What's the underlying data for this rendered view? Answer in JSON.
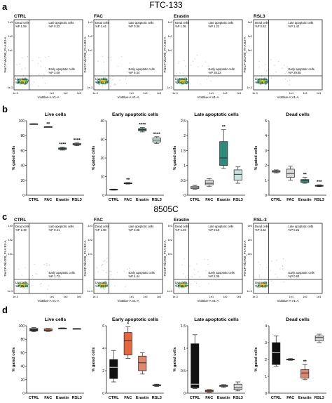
{
  "figure": {
    "panel_letters": [
      "a",
      "b",
      "c",
      "d"
    ],
    "title_a": "FTC-133",
    "title_c": "8505C",
    "facs_ylabel": "PerCP-Vio700_PI-A B3-A",
    "facs_xlabel": "VioBlue-A V1-A",
    "facs_ticks": [
      "1e-3",
      "1e1",
      "1e2",
      "1e3"
    ],
    "box_ylabel": "% gated cells",
    "quadrant_labels": {
      "dead": "Dead cells",
      "late": "Late apoptotic cells",
      "early": "Early apoptotic cells",
      "live": "Live cells"
    }
  },
  "facs_a": [
    {
      "name": "CTRL",
      "dead": "%P 1.59",
      "late": "%P 0.22",
      "early": "%P 3.09",
      "live": "%P 95.17"
    },
    {
      "name": "FAC",
      "dead": "%P 1.44",
      "late": "%P 0.36",
      "early": "%P 6.44",
      "live": "%P 91.76"
    },
    {
      "name": "Erastin",
      "dead": "%P 1.05",
      "late": "%P 1.22",
      "early": "%P 35.23",
      "live": "%P 62.50"
    },
    {
      "name": "RSL3",
      "dead": "%P 0.63",
      "late": "%P 1.42",
      "early": "%P 29.65",
      "live": "%P 68.30"
    }
  ],
  "facs_c": [
    {
      "name": "CTRL",
      "dead": "%P 2.49",
      "late": "%P 0.21",
      "early": "%P 1.72",
      "live": "%P 95.58"
    },
    {
      "name": "FAC",
      "dead": "%P 1.98",
      "late": "%P 0.08",
      "early": "%P 4.44",
      "live": "%P 93.50"
    },
    {
      "name": "Erastin",
      "dead": "%P 1.49",
      "late": "%P 0.19",
      "early": "%P 2.05",
      "live": "%P 96.27"
    },
    {
      "name": "RSL-3",
      "dead": "%P 3.32",
      "late": "%P 0.21",
      "early": "%P 0.63",
      "live": "%P 95.84"
    }
  ],
  "chart_data": [
    {
      "type": "box",
      "panel": "b",
      "title": "Live cells",
      "ylabel": "% gated cells",
      "categories": [
        "CTRL",
        "FAC",
        "Erastin",
        "RSL3"
      ],
      "ylim": [
        0,
        100
      ],
      "yticks": [
        0,
        20,
        40,
        60,
        80,
        100
      ],
      "boxes": [
        {
          "min": 95.3,
          "q1": 95.5,
          "median": 95.8,
          "q3": 96.0,
          "max": 96.1
        },
        {
          "min": 91.3,
          "q1": 91.5,
          "median": 91.8,
          "q3": 92.0,
          "max": 92.2
        },
        {
          "min": 60.5,
          "q1": 61.5,
          "median": 62.5,
          "q3": 63.5,
          "max": 64.5
        },
        {
          "min": 66.5,
          "q1": 67.5,
          "median": 68.5,
          "q3": 69.5,
          "max": 70.5
        }
      ],
      "colors": [
        "#f2f2f2",
        "#d8d8d8",
        "#2e8b7a",
        "#c7e3dd"
      ],
      "annotations": [
        "",
        "**",
        "****",
        "****"
      ]
    },
    {
      "type": "box",
      "panel": "b",
      "title": "Early apoptotic cells",
      "ylabel": "% gated cells",
      "categories": [
        "CTRL",
        "FAC",
        "Erastin",
        "RSL3"
      ],
      "ylim": [
        0,
        40
      ],
      "yticks": [
        0,
        10,
        20,
        30,
        40
      ],
      "boxes": [
        {
          "min": 2.7,
          "q1": 2.9,
          "median": 3.0,
          "q3": 3.2,
          "max": 3.3
        },
        {
          "min": 6.0,
          "q1": 6.2,
          "median": 6.4,
          "q3": 6.6,
          "max": 6.8
        },
        {
          "min": 34.0,
          "q1": 34.6,
          "median": 35.2,
          "q3": 35.8,
          "max": 36.4
        },
        {
          "min": 27.8,
          "q1": 28.6,
          "median": 29.6,
          "q3": 30.8,
          "max": 31.4
        }
      ],
      "colors": [
        "#f2f2f2",
        "#d8d8d8",
        "#2e8b7a",
        "#c7e3dd"
      ],
      "annotations": [
        "",
        "**",
        "****",
        "****"
      ]
    },
    {
      "type": "box",
      "panel": "b",
      "title": "Late apoptotic cells",
      "ylabel": "% gated cells",
      "categories": [
        "CTRL",
        "FAC",
        "Erastin",
        "RSL3"
      ],
      "ylim": [
        0,
        2.5
      ],
      "yticks": [
        0,
        0.5,
        1,
        1.5,
        2,
        2.5
      ],
      "boxes": [
        {
          "min": 0.2,
          "q1": 0.22,
          "median": 0.25,
          "q3": 0.3,
          "max": 0.33
        },
        {
          "min": 0.3,
          "q1": 0.35,
          "median": 0.4,
          "q3": 0.5,
          "max": 0.55
        },
        {
          "min": 0.9,
          "q1": 1.0,
          "median": 1.25,
          "q3": 1.8,
          "max": 2.2
        },
        {
          "min": 0.4,
          "q1": 0.5,
          "median": 0.7,
          "q3": 0.85,
          "max": 0.95
        }
      ],
      "colors": [
        "#f2f2f2",
        "#d8d8d8",
        "#2e8b7a",
        "#c7e3dd"
      ],
      "annotations": [
        "",
        "",
        "**",
        ""
      ]
    },
    {
      "type": "box",
      "panel": "b",
      "title": "Dead cells",
      "ylabel": "% gated cells",
      "categories": [
        "CTRL",
        "FAC",
        "Erastin",
        "RSL3"
      ],
      "ylim": [
        0,
        5
      ],
      "yticks": [
        0,
        1,
        2,
        3,
        4,
        5
      ],
      "boxes": [
        {
          "min": 1.5,
          "q1": 1.55,
          "median": 1.6,
          "q3": 1.65,
          "max": 1.7
        },
        {
          "min": 1.0,
          "q1": 1.2,
          "median": 1.45,
          "q3": 1.75,
          "max": 1.95
        },
        {
          "min": 0.8,
          "q1": 0.85,
          "median": 1.0,
          "q3": 1.05,
          "max": 1.2
        },
        {
          "min": 0.58,
          "q1": 0.6,
          "median": 0.63,
          "q3": 0.66,
          "max": 0.7
        }
      ],
      "colors": [
        "#f2f2f2",
        "#d8d8d8",
        "#2e8b7a",
        "#c7e3dd"
      ],
      "annotations": [
        "",
        "",
        "**",
        "***"
      ]
    },
    {
      "type": "box",
      "panel": "d",
      "title": "Live cells",
      "ylabel": "% gated cells",
      "categories": [
        "CTRL",
        "FAC",
        "Erastin",
        "RSL3"
      ],
      "ylim": [
        0,
        100
      ],
      "yticks": [
        0,
        20,
        40,
        60,
        80,
        100
      ],
      "boxes": [
        {
          "min": 91.0,
          "q1": 92.5,
          "median": 95.5,
          "q3": 96.5,
          "max": 97.5
        },
        {
          "min": 91.5,
          "q1": 92.5,
          "median": 93.5,
          "q3": 95.5,
          "max": 96.0
        },
        {
          "min": 95.8,
          "q1": 96.0,
          "median": 96.3,
          "q3": 96.6,
          "max": 96.8
        },
        {
          "min": 95.5,
          "q1": 95.7,
          "median": 95.8,
          "q3": 96.0,
          "max": 96.1
        }
      ],
      "colors": [
        "#111111",
        "#e8663d",
        "#e0866e",
        "#d8d8d8"
      ],
      "annotations": [
        "",
        "",
        "",
        ""
      ]
    },
    {
      "type": "box",
      "panel": "d",
      "title": "Early apoptotic cells",
      "ylabel": "% gated cells",
      "categories": [
        "CTRL",
        "FAC",
        "Erastin",
        "RSL3"
      ],
      "ylim": [
        0,
        6
      ],
      "yticks": [
        0,
        2,
        4,
        6
      ],
      "boxes": [
        {
          "min": 1.0,
          "q1": 1.3,
          "median": 2.3,
          "q3": 3.0,
          "max": 3.8
        },
        {
          "min": 3.1,
          "q1": 3.4,
          "median": 4.7,
          "q3": 5.4,
          "max": 5.9
        },
        {
          "min": 1.7,
          "q1": 2.0,
          "median": 2.7,
          "q3": 3.3,
          "max": 3.6
        },
        {
          "min": 0.6,
          "q1": 0.65,
          "median": 0.7,
          "q3": 0.75,
          "max": 0.8
        }
      ],
      "colors": [
        "#111111",
        "#e8663d",
        "#e0866e",
        "#d8d8d8"
      ],
      "annotations": [
        "",
        "*",
        "",
        ""
      ]
    },
    {
      "type": "box",
      "panel": "d",
      "title": "Late apoptotic cells",
      "ylabel": "% gated cells",
      "categories": [
        "CTRL",
        "FAC",
        "Erastin",
        "RSL3"
      ],
      "ylim": [
        0,
        1.5
      ],
      "yticks": [
        0,
        0.5,
        1,
        1.5
      ],
      "boxes": [
        {
          "min": 0.1,
          "q1": 0.12,
          "median": 0.2,
          "q3": 1.1,
          "max": 1.3
        },
        {
          "min": 0.02,
          "q1": 0.03,
          "median": 0.05,
          "q3": 0.07,
          "max": 0.08
        },
        {
          "min": 0.13,
          "q1": 0.15,
          "median": 0.16,
          "q3": 0.18,
          "max": 0.19
        },
        {
          "min": 0.05,
          "q1": 0.08,
          "median": 0.12,
          "q3": 0.2,
          "max": 0.25
        }
      ],
      "colors": [
        "#111111",
        "#e8663d",
        "#e0866e",
        "#d8d8d8"
      ],
      "annotations": [
        "",
        "",
        "",
        ""
      ]
    },
    {
      "type": "box",
      "panel": "d",
      "title": "Dead cells",
      "ylabel": "% gated cells",
      "categories": [
        "CTRL",
        "FAC",
        "Erastin",
        "RSL3"
      ],
      "ylim": [
        0,
        4
      ],
      "yticks": [
        0,
        1,
        2,
        3,
        4
      ],
      "boxes": [
        {
          "min": 1.6,
          "q1": 1.7,
          "median": 2.4,
          "q3": 3.0,
          "max": 3.4
        },
        {
          "min": 1.95,
          "q1": 1.97,
          "median": 2.0,
          "q3": 2.02,
          "max": 2.05
        },
        {
          "min": 0.8,
          "q1": 0.9,
          "median": 1.2,
          "q3": 1.4,
          "max": 1.7
        },
        {
          "min": 3.0,
          "q1": 3.1,
          "median": 3.3,
          "q3": 3.4,
          "max": 3.5
        }
      ],
      "colors": [
        "#111111",
        "#e8663d",
        "#e0866e",
        "#d8d8d8"
      ],
      "annotations": [
        "",
        "",
        "**",
        ""
      ]
    }
  ]
}
